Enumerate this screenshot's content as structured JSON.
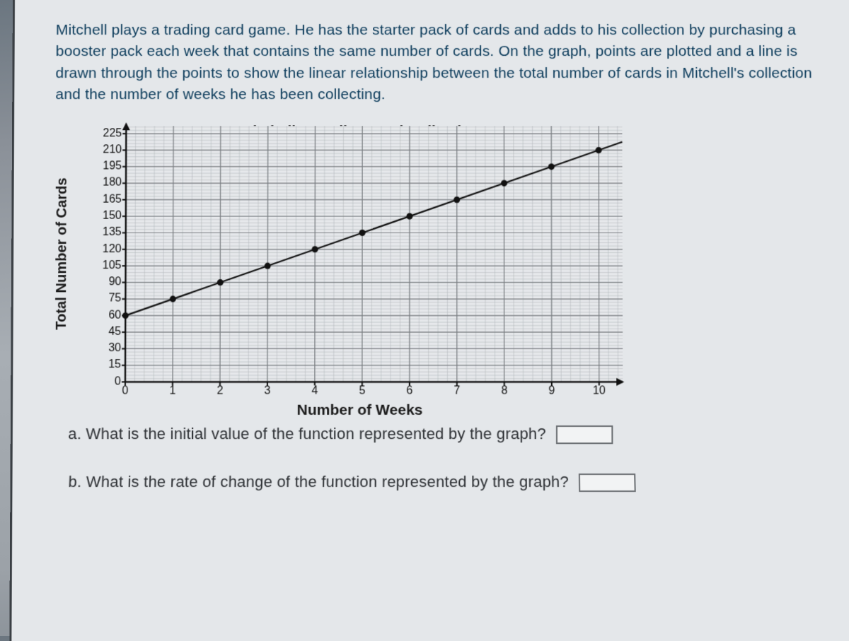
{
  "problem_text": "Mitchell plays a trading card game.  He has the starter pack of cards and adds to his collection by purchasing a booster pack each week that contains the same number of cards.  On the graph, points are plotted and a line is drawn through the points to show the linear relationship between the total number of cards in Mitchell's collection and the number of weeks he has been collecting.",
  "chart": {
    "type": "line",
    "title": "Mitchell's Trading Card Collection",
    "xlabel": "Number of Weeks",
    "ylabel": "Total Number of Cards",
    "xlim": [
      0,
      10.5
    ],
    "ylim": [
      0,
      232
    ],
    "xtick_step": 1,
    "ytick_step": 15,
    "xticks": [
      0,
      1,
      2,
      3,
      4,
      5,
      6,
      7,
      8,
      9,
      10
    ],
    "yticks": [
      0,
      15,
      30,
      45,
      60,
      75,
      90,
      105,
      120,
      135,
      150,
      165,
      180,
      195,
      210,
      225
    ],
    "minor_x_div": 5,
    "minor_y_div": 5,
    "grid_major_color": "#7a7e82",
    "grid_minor_color": "#b4b8bc",
    "axis_color": "#111111",
    "background_color": "#e6e8eb",
    "line_color": "#111111",
    "line_width": 2.2,
    "point_color": "#111111",
    "point_radius": 4.5,
    "arrow_size": 9,
    "title_fontsize": 21,
    "label_fontsize": 20,
    "tick_fontsize": 16,
    "points_x": [
      0,
      1,
      2,
      3,
      4,
      5,
      6,
      7,
      8,
      9,
      10
    ],
    "points_y": [
      60,
      75,
      90,
      105,
      120,
      135,
      150,
      165,
      180,
      195,
      210
    ],
    "line_start": [
      0,
      60
    ],
    "line_end": [
      10.5,
      217.5
    ]
  },
  "questions": {
    "a_prefix": "a.",
    "a_text": "What is the initial value of the function represented by the graph?",
    "b_prefix": "b.",
    "b_text": "What is the rate of change of the function represented by the graph?"
  }
}
